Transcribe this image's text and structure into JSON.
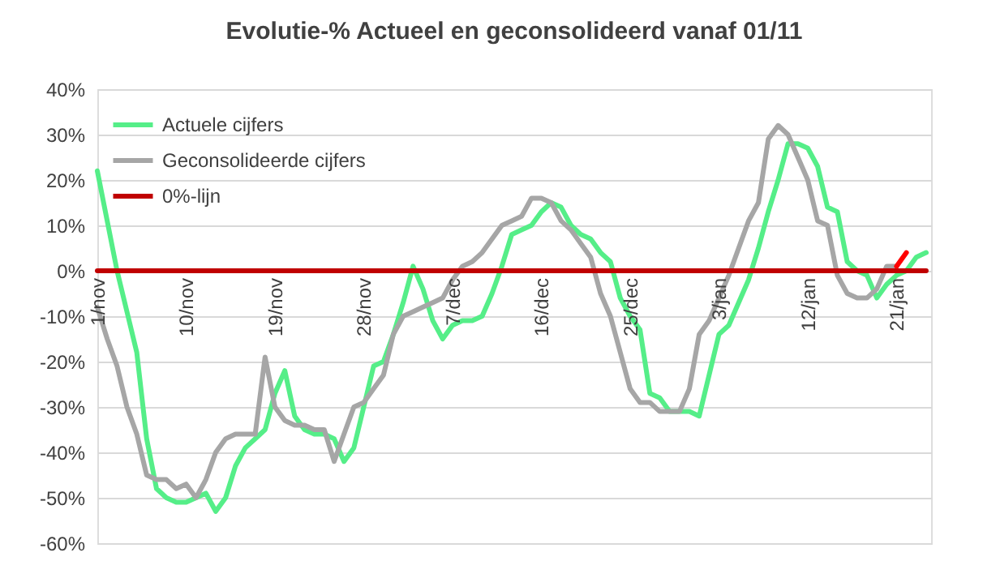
{
  "chart_data": {
    "type": "line",
    "title": "Evolutie-% Actueel en geconsolideerd vanaf 01/11",
    "categories": [
      "1/nov",
      null,
      null,
      null,
      null,
      null,
      null,
      null,
      null,
      "10/nov",
      null,
      null,
      null,
      null,
      null,
      null,
      null,
      null,
      "19/nov",
      null,
      null,
      null,
      null,
      null,
      null,
      null,
      null,
      "28/nov",
      null,
      null,
      null,
      null,
      null,
      null,
      null,
      null,
      "7/dec",
      null,
      null,
      null,
      null,
      null,
      null,
      null,
      null,
      "16/dec",
      null,
      null,
      null,
      null,
      null,
      null,
      null,
      null,
      "25/dec",
      null,
      null,
      null,
      null,
      null,
      null,
      null,
      null,
      "3/jan",
      null,
      null,
      null,
      null,
      null,
      null,
      null,
      null,
      "12/jan",
      null,
      null,
      null,
      null,
      null,
      null,
      null,
      null,
      "21/jan",
      null,
      null,
      null
    ],
    "ylim": [
      -60,
      40
    ],
    "yticks": [
      {
        "value": -60,
        "label": "-60%"
      },
      {
        "value": -50,
        "label": "-50%"
      },
      {
        "value": -40,
        "label": "-40%"
      },
      {
        "value": -30,
        "label": "-30%"
      },
      {
        "value": -20,
        "label": "-20%"
      },
      {
        "value": -10,
        "label": "-10%"
      },
      {
        "value": 0,
        "label": "0%"
      },
      {
        "value": 10,
        "label": "10%"
      },
      {
        "value": 20,
        "label": "20%"
      },
      {
        "value": 30,
        "label": "30%"
      },
      {
        "value": 40,
        "label": "40%"
      }
    ],
    "grid": "y",
    "legend": "top left",
    "marker": "none",
    "line_style": "solid",
    "series": [
      {
        "name": "Actuele cijfers",
        "color": "#55ee88",
        "values": [
          22,
          11,
          0,
          -9,
          -18,
          -37,
          -48,
          -50,
          -51,
          -51,
          -50,
          -49,
          -53,
          -50,
          -43,
          -39,
          -37,
          -35,
          -27,
          -22,
          -32,
          -35,
          -36,
          -36,
          -37,
          -42,
          -39,
          -30,
          -21,
          -20,
          -14,
          -7,
          1,
          -4,
          -11,
          -15,
          -12,
          -11,
          -11,
          -10,
          -5,
          1,
          8,
          9,
          10,
          13,
          15,
          14,
          10,
          8,
          7,
          4,
          2,
          -6,
          -10,
          -13,
          -27,
          -28,
          -31,
          -31,
          -31,
          -32,
          -23,
          -14,
          -12,
          -7,
          -2,
          5,
          13,
          20,
          28,
          28,
          27,
          23,
          14,
          13,
          2,
          0,
          -1,
          -6,
          -3,
          -1,
          0,
          3,
          4
        ]
      },
      {
        "name": "Geconsolideerde cijfers",
        "color": "#a6a6a6",
        "values": [
          -8,
          -15,
          -21,
          -30,
          -36,
          -45,
          -46,
          -46,
          -48,
          -47,
          -50,
          -46,
          -40,
          -37,
          -36,
          -36,
          -36,
          -19,
          -30,
          -33,
          -34,
          -34,
          -35,
          -35,
          -42,
          -36,
          -30,
          -29,
          -26,
          -23,
          -14,
          -10,
          -9,
          -8,
          -7,
          -6,
          -2,
          1,
          2,
          4,
          7,
          10,
          11,
          12,
          16,
          16,
          15,
          11,
          9,
          6,
          3,
          -5,
          -10,
          -18,
          -26,
          -29,
          -29,
          -31,
          -31,
          -31,
          -26,
          -14,
          -11,
          -6,
          -1,
          5,
          11,
          15,
          29,
          32,
          30,
          25,
          20,
          11,
          10,
          -1,
          -5,
          -6,
          -6,
          -4,
          1,
          1,
          null,
          null,
          null
        ]
      },
      {
        "name": "0%-lijn",
        "color": "#c00000",
        "values": [
          0,
          0,
          0,
          0,
          0,
          0,
          0,
          0,
          0,
          0,
          0,
          0,
          0,
          0,
          0,
          0,
          0,
          0,
          0,
          0,
          0,
          0,
          0,
          0,
          0,
          0,
          0,
          0,
          0,
          0,
          0,
          0,
          0,
          0,
          0,
          0,
          0,
          0,
          0,
          0,
          0,
          0,
          0,
          0,
          0,
          0,
          0,
          0,
          0,
          0,
          0,
          0,
          0,
          0,
          0,
          0,
          0,
          0,
          0,
          0,
          0,
          0,
          0,
          0,
          0,
          0,
          0,
          0,
          0,
          0,
          0,
          0,
          0,
          0,
          0,
          0,
          0,
          0,
          0,
          0,
          0,
          0,
          0,
          0,
          0
        ]
      },
      {
        "color": "#ff0000",
        "values": [
          null,
          null,
          null,
          null,
          null,
          null,
          null,
          null,
          null,
          null,
          null,
          null,
          null,
          null,
          null,
          null,
          null,
          null,
          null,
          null,
          null,
          null,
          null,
          null,
          null,
          null,
          null,
          null,
          null,
          null,
          null,
          null,
          null,
          null,
          null,
          null,
          null,
          null,
          null,
          null,
          null,
          null,
          null,
          null,
          null,
          null,
          null,
          null,
          null,
          null,
          null,
          null,
          null,
          null,
          null,
          null,
          null,
          null,
          null,
          null,
          null,
          null,
          null,
          null,
          null,
          null,
          null,
          null,
          null,
          null,
          null,
          null,
          null,
          null,
          null,
          null,
          null,
          null,
          null,
          null,
          null,
          1,
          4,
          null,
          null
        ]
      }
    ]
  }
}
